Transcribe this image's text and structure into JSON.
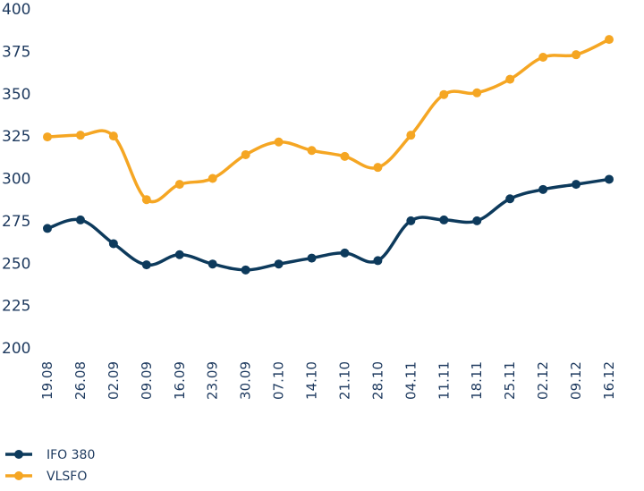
{
  "chart_data": {
    "type": "line",
    "title": "",
    "xlabel": "",
    "ylabel": "",
    "ylim": [
      200,
      400
    ],
    "yticks": [
      200,
      225,
      250,
      275,
      300,
      325,
      350,
      375,
      400
    ],
    "grid": false,
    "legend_position": "bottom-left",
    "categories": [
      "19.08",
      "26.08",
      "02.09",
      "09.09",
      "16.09",
      "23.09",
      "30.09",
      "07.10",
      "14.10",
      "21.10",
      "28.10",
      "04.11",
      "11.11",
      "18.11",
      "25.11",
      "02.12",
      "09.12",
      "16.12"
    ],
    "series": [
      {
        "name": "IFO 380",
        "color": "#0d3a5c",
        "values": [
          270.5,
          275.5,
          261.5,
          249,
          255,
          249.5,
          246,
          249.5,
          253,
          256,
          251.5,
          275,
          275.5,
          275,
          288,
          293.5,
          296.5,
          299.5
        ]
      },
      {
        "name": "VLSFO",
        "color": "#f5a623",
        "values": [
          324.5,
          325.5,
          325,
          287.5,
          296.5,
          300,
          314,
          321.5,
          316.5,
          313,
          306.5,
          325.5,
          349.5,
          350.5,
          358.5,
          371.5,
          373,
          382
        ]
      }
    ]
  }
}
